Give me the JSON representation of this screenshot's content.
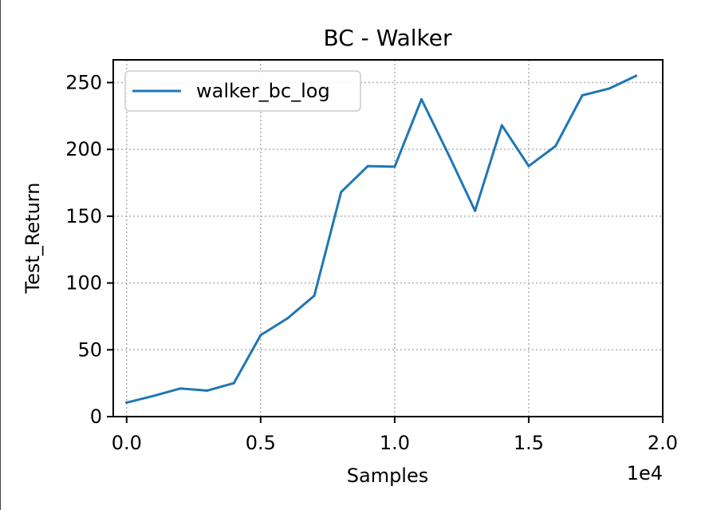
{
  "chart_data": {
    "type": "line",
    "title": "BC - Walker",
    "xlabel": "Samples",
    "ylabel": "Test_Return",
    "x_offset_label": "1e4",
    "xlim": [
      -0.05,
      2.0
    ],
    "ylim": [
      0,
      267
    ],
    "xticks": [
      0.0,
      0.5,
      1.0,
      1.5,
      2.0
    ],
    "xtick_labels": [
      "0.0",
      "0.5",
      "1.0",
      "1.5",
      "2.0"
    ],
    "yticks": [
      0,
      50,
      100,
      150,
      200,
      250
    ],
    "ytick_labels": [
      "0",
      "50",
      "100",
      "150",
      "200",
      "250"
    ],
    "grid": true,
    "grid_style": "dotted",
    "legend_position": "upper-left",
    "series": [
      {
        "name": "walker_bc_log",
        "color": "#1f77b4",
        "x": [
          0.0,
          0.1,
          0.2,
          0.3,
          0.4,
          0.5,
          0.6,
          0.7,
          0.8,
          0.9,
          1.0,
          1.1,
          1.2,
          1.3,
          1.4,
          1.5,
          1.6,
          1.7,
          1.8,
          1.9
        ],
        "y": [
          10.5,
          15.5,
          21,
          19.5,
          25,
          61,
          73.5,
          90.5,
          168,
          187.5,
          187,
          237.5,
          196.5,
          154,
          218,
          187.5,
          202.5,
          240.5,
          245.5,
          255
        ]
      }
    ]
  }
}
